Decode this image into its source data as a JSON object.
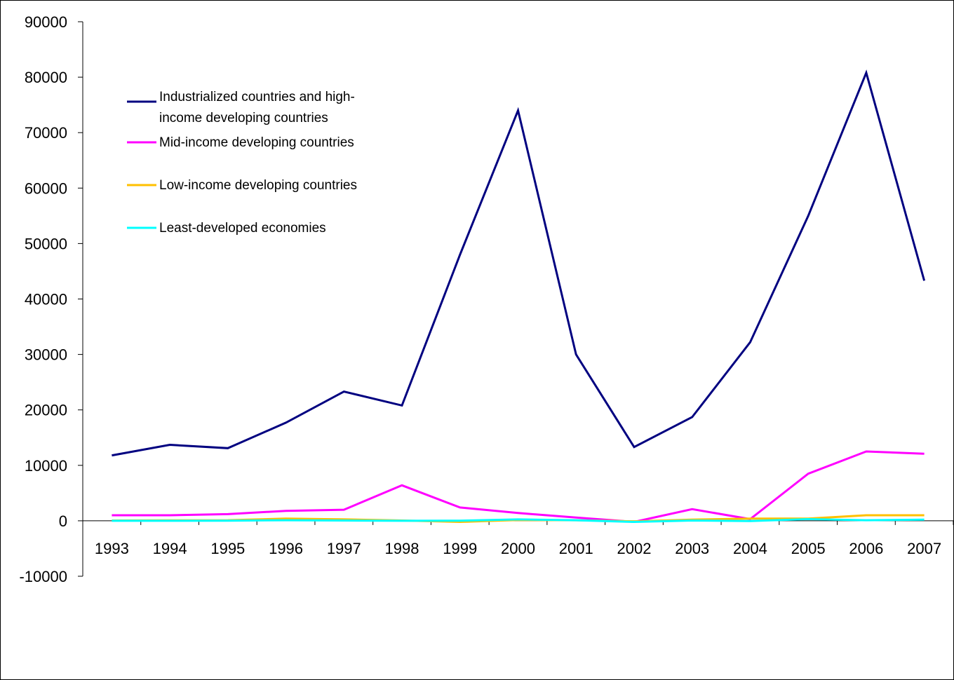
{
  "chart_data": {
    "type": "line",
    "title": "",
    "xlabel": "",
    "ylabel": "",
    "x": [
      "1993",
      "1994",
      "1995",
      "1996",
      "1997",
      "1998",
      "1999",
      "2000",
      "2001",
      "2002",
      "2003",
      "2004",
      "2005",
      "2006",
      "2007"
    ],
    "ylim": [
      -10000,
      90000
    ],
    "y_ticks": [
      90000,
      80000,
      70000,
      60000,
      50000,
      40000,
      30000,
      20000,
      10000,
      0,
      -10000
    ],
    "y_tick_labels": [
      "90000",
      "80000",
      "70000",
      "60000",
      "50000",
      "40000",
      "30000",
      "20000",
      "10000",
      "0",
      "-10000"
    ],
    "grid": false,
    "legend_position": "upper-left",
    "series": [
      {
        "name": "Industrialized countries and high-income developing countries",
        "legend_lines": [
          "Industrialized countries and high-",
          "income developing countries"
        ],
        "color": "#000080",
        "values": [
          11800,
          13700,
          13100,
          17700,
          23300,
          20800,
          48000,
          74000,
          30000,
          13300,
          18700,
          32200,
          55000,
          80800,
          43300
        ]
      },
      {
        "name": "Mid-income developing countries",
        "legend_lines": [
          "Mid-income developing countries"
        ],
        "color": "#ff00ff",
        "values": [
          1000,
          1000,
          1200,
          1800,
          2000,
          6400,
          2400,
          1400,
          600,
          -200,
          2100,
          300,
          8500,
          12500,
          12100
        ]
      },
      {
        "name": "Low-income developing countries",
        "legend_lines": [
          "Low-income developing countries"
        ],
        "color": "#ffc000",
        "values": [
          50,
          80,
          100,
          400,
          250,
          50,
          -200,
          150,
          100,
          -100,
          200,
          400,
          400,
          1000,
          1000
        ]
      },
      {
        "name": "Least-developed economies",
        "legend_lines": [
          "Least-developed economies"
        ],
        "color": "#00ffff",
        "values": [
          0,
          0,
          30,
          100,
          50,
          0,
          30,
          250,
          100,
          -200,
          50,
          -50,
          300,
          100,
          200
        ]
      }
    ]
  }
}
